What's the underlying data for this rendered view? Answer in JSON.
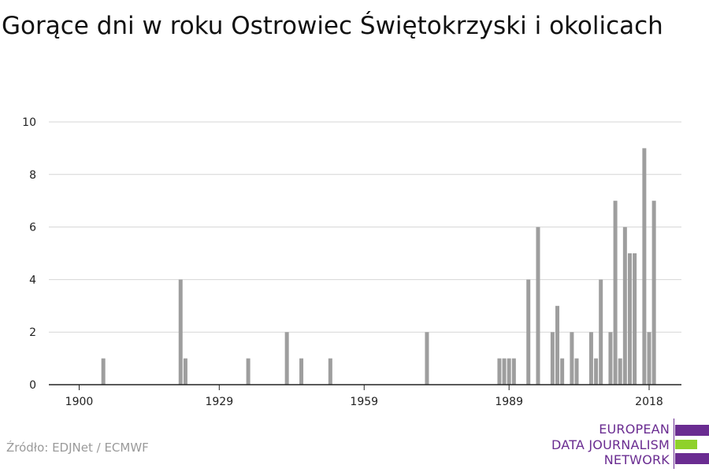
{
  "title": "Gorące dni w roku Ostrowiec Świętokrzyski i okolicach",
  "source": "Źródło: EDJNet / ECMWF",
  "logo": {
    "lines": [
      "EUROPEAN",
      "DATA JOURNALISM",
      "NETWORK"
    ],
    "colors": {
      "purple": "#6a2c91",
      "green": "#8fd12b"
    }
  },
  "colors": {
    "bar": "#9e9e9e",
    "grid": "#d6d6d6",
    "axis": "#222222"
  },
  "chart_data": {
    "type": "bar",
    "title": "Gorące dni w roku Ostrowiec Świętokrzyski i okolicach",
    "xlabel": "",
    "ylabel": "",
    "xlim": [
      1900,
      2018
    ],
    "ylim": [
      0,
      10
    ],
    "x_ticks": [
      1900,
      1929,
      1959,
      1989,
      2018
    ],
    "y_ticks": [
      0,
      2,
      4,
      6,
      8,
      10
    ],
    "grid": true,
    "x": [
      1905,
      1921,
      1922,
      1935,
      1943,
      1946,
      1952,
      1972,
      1987,
      1988,
      1989,
      1990,
      1993,
      1995,
      1998,
      1999,
      2000,
      2002,
      2003,
      2006,
      2007,
      2008,
      2010,
      2011,
      2012,
      2013,
      2014,
      2015,
      2017,
      2018,
      2019
    ],
    "values": [
      1,
      4,
      1,
      1,
      2,
      1,
      1,
      2,
      1,
      1,
      1,
      1,
      4,
      6,
      2,
      3,
      1,
      2,
      1,
      2,
      1,
      4,
      2,
      7,
      1,
      6,
      5,
      5,
      9,
      2,
      7
    ]
  }
}
